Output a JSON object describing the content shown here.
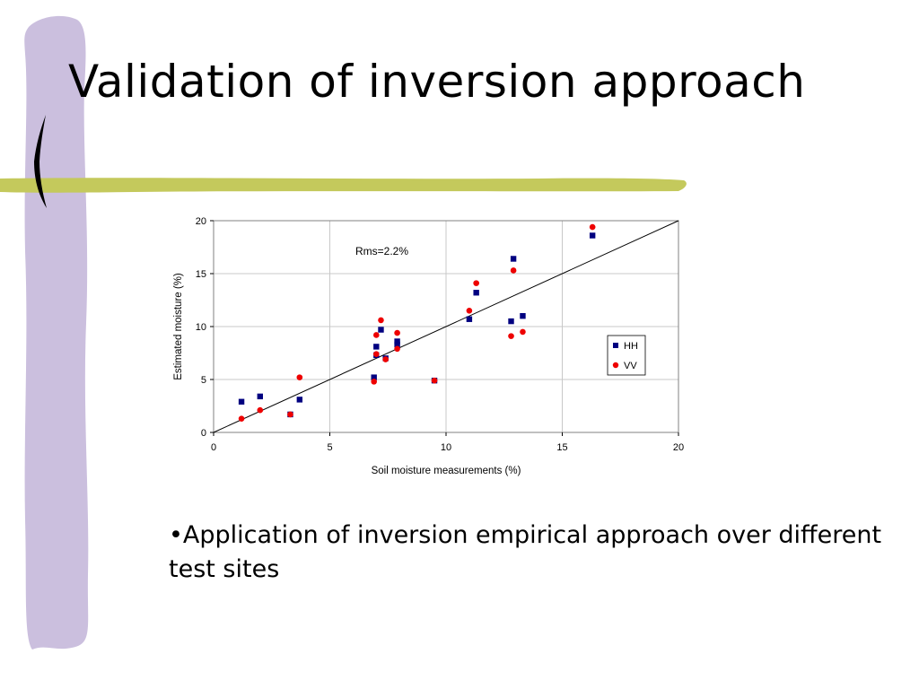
{
  "slide": {
    "title": "Validation of inversion approach",
    "bullet": "•Application of inversion empirical approach over different test sites"
  },
  "colors": {
    "accent_bar": "#cbbfde",
    "accent_stripe": "#c4c95c",
    "hh": "#000080",
    "vv": "#ee0000"
  },
  "chart_data": {
    "type": "scatter",
    "xlabel": "Soil moisture measurements (%)",
    "ylabel": "Estimated moisture (%)",
    "xlim": [
      0,
      20
    ],
    "ylim": [
      0,
      20
    ],
    "xticks": [
      0,
      5,
      10,
      15,
      20
    ],
    "yticks": [
      0,
      5,
      10,
      15,
      20
    ],
    "grid": true,
    "legend_position": "right",
    "annotation": "Rms=2.2%",
    "reference_line": {
      "from": [
        0,
        0
      ],
      "to": [
        20,
        20
      ]
    },
    "series": [
      {
        "name": "HH",
        "marker": "square",
        "color": "#000080",
        "points": [
          [
            1.2,
            2.9
          ],
          [
            2.0,
            3.4
          ],
          [
            3.3,
            1.7
          ],
          [
            3.7,
            3.1
          ],
          [
            6.9,
            5.2
          ],
          [
            7.0,
            7.3
          ],
          [
            7.0,
            8.1
          ],
          [
            7.2,
            9.7
          ],
          [
            7.4,
            7.0
          ],
          [
            7.9,
            8.6
          ],
          [
            7.9,
            8.3
          ],
          [
            9.5,
            4.9
          ],
          [
            11.0,
            10.7
          ],
          [
            11.3,
            13.2
          ],
          [
            12.8,
            10.5
          ],
          [
            12.9,
            16.4
          ],
          [
            13.3,
            11.0
          ],
          [
            16.3,
            18.6
          ]
        ]
      },
      {
        "name": "VV",
        "marker": "circle",
        "color": "#ee0000",
        "points": [
          [
            1.2,
            1.3
          ],
          [
            2.0,
            2.1
          ],
          [
            3.3,
            1.7
          ],
          [
            3.7,
            5.2
          ],
          [
            6.9,
            4.8
          ],
          [
            7.0,
            7.4
          ],
          [
            7.0,
            9.2
          ],
          [
            7.2,
            10.6
          ],
          [
            7.4,
            6.9
          ],
          [
            7.9,
            9.4
          ],
          [
            7.9,
            7.9
          ],
          [
            9.5,
            4.9
          ],
          [
            11.0,
            11.5
          ],
          [
            11.3,
            14.1
          ],
          [
            12.8,
            9.1
          ],
          [
            12.9,
            15.3
          ],
          [
            13.3,
            9.5
          ],
          [
            16.3,
            19.4
          ]
        ]
      }
    ]
  }
}
